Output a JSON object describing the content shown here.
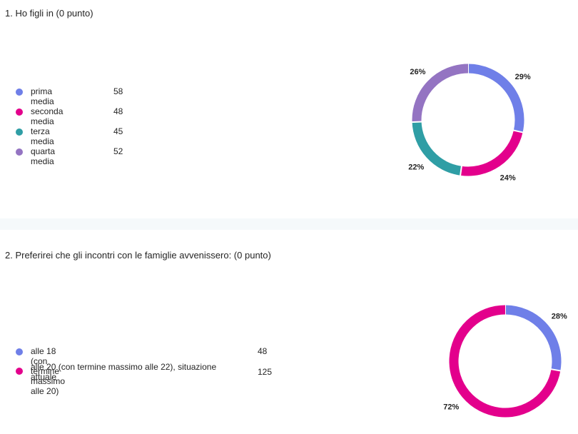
{
  "questions": [
    {
      "title": "1. Ho figli in (0 punto)",
      "chart_data": {
        "type": "pie",
        "categories": [
          "prima media",
          "seconda media",
          "terza media",
          "quarta media"
        ],
        "values": [
          58,
          48,
          45,
          52
        ],
        "percent_labels": [
          "29%",
          "24%",
          "22%",
          "26%"
        ],
        "colors": [
          "#6f7fe8",
          "#e3008c",
          "#2f9ea5",
          "#9474c2"
        ]
      }
    },
    {
      "title": "2. Preferirei che gli incontri con le famiglie avvenissero: (0 punto)",
      "chart_data": {
        "type": "pie",
        "categories": [
          "alle 18 (con termine massimo alle 20)",
          "alle 20 (con termine massimo alle 22), situazione attuale"
        ],
        "values": [
          48,
          125
        ],
        "percent_labels": [
          "28%",
          "72%"
        ],
        "colors": [
          "#6f7fe8",
          "#e3008c"
        ]
      }
    }
  ]
}
